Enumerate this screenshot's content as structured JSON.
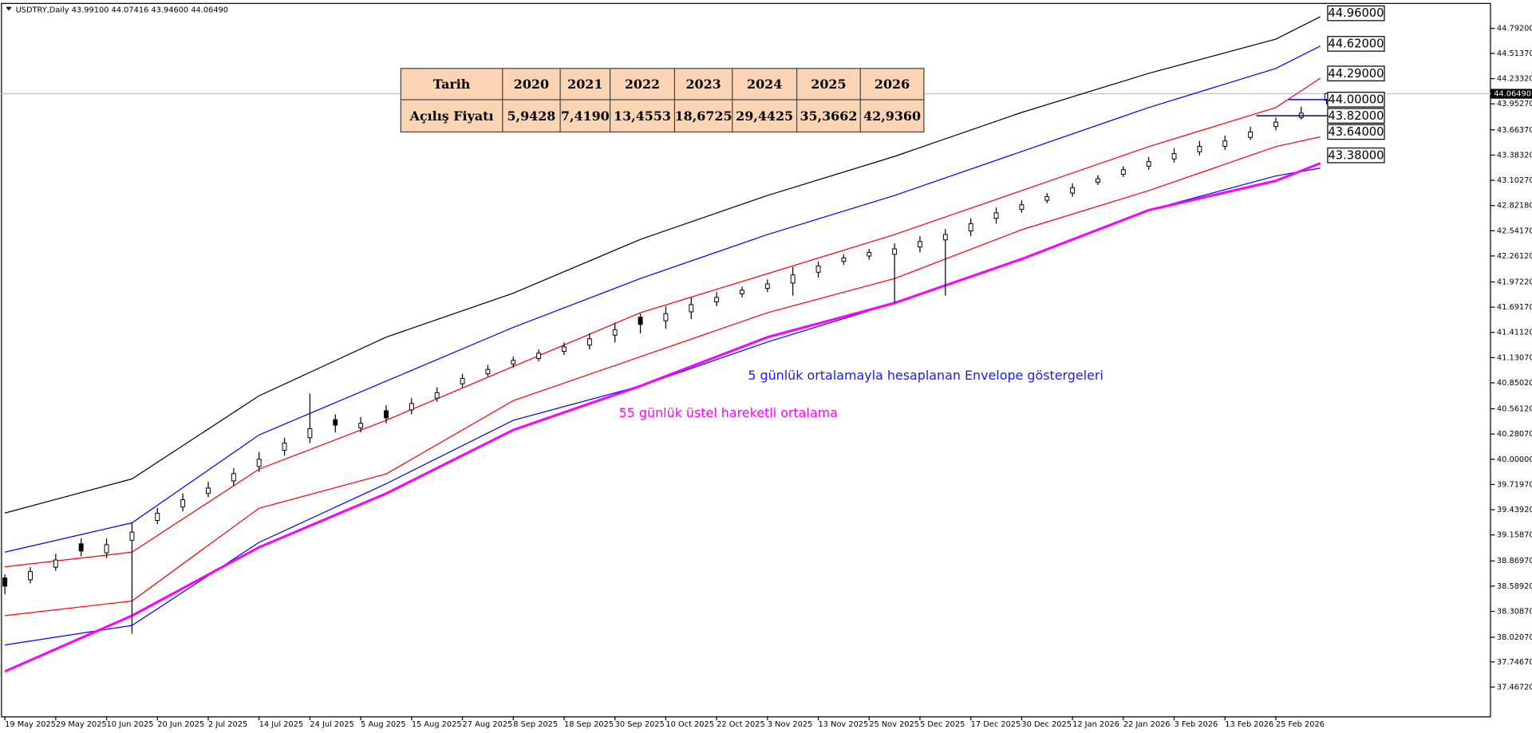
{
  "chart_data": {
    "type": "candlestick",
    "title": "USDTRY,Daily  43.99100 44.07416 43.94600 44.06490",
    "xlim": [
      -0.77,
      233.85
    ],
    "ylim": [
      37.141,
      45.053
    ],
    "xticks": [
      {
        "value": 0,
        "label": "19 May 2025"
      },
      {
        "value": 8,
        "label": "29 May 2025"
      },
      {
        "value": 16,
        "label": "10 Jun 2025"
      },
      {
        "value": 24,
        "label": "20 Jun 2025"
      },
      {
        "value": 32,
        "label": "2 Jul 2025"
      },
      {
        "value": 40,
        "label": "14 Jul 2025"
      },
      {
        "value": 48,
        "label": "24 Jul 2025"
      },
      {
        "value": 56,
        "label": "5 Aug 2025"
      },
      {
        "value": 64,
        "label": "15 Aug 2025"
      },
      {
        "value": 72,
        "label": "27 Aug 2025"
      },
      {
        "value": 80,
        "label": "8 Sep 2025"
      },
      {
        "value": 88,
        "label": "18 Sep 2025"
      },
      {
        "value": 96,
        "label": "30 Sep 2025"
      },
      {
        "value": 104,
        "label": "10 Oct 2025"
      },
      {
        "value": 112,
        "label": "22 Oct 2025"
      },
      {
        "value": 120,
        "label": "3 Nov 2025"
      },
      {
        "value": 128,
        "label": "13 Nov 2025"
      },
      {
        "value": 136,
        "label": "25 Nov 2025"
      },
      {
        "value": 144,
        "label": "5 Dec 2025"
      },
      {
        "value": 152,
        "label": "17 Dec 2025"
      },
      {
        "value": 160,
        "label": "30 Dec 2025"
      },
      {
        "value": 168,
        "label": "12 Jan 2026"
      },
      {
        "value": 176,
        "label": "22 Jan 2026"
      },
      {
        "value": 184,
        "label": "3 Feb 2026"
      },
      {
        "value": 192,
        "label": "13 Feb 2026"
      },
      {
        "value": 200,
        "label": "25 Feb 2026"
      }
    ],
    "yticks": [
      {
        "value": 44.792,
        "label": "44.79200"
      },
      {
        "value": 44.5137,
        "label": "44.51370"
      },
      {
        "value": 44.2332,
        "label": "44.23320"
      },
      {
        "value": 43.9527,
        "label": "43.95270"
      },
      {
        "value": 43.6637,
        "label": "43.66370"
      },
      {
        "value": 43.3832,
        "label": "43.38320"
      },
      {
        "value": 43.1027,
        "label": "43.10270"
      },
      {
        "value": 42.8218,
        "label": "42.82180"
      },
      {
        "value": 42.5417,
        "label": "42.54170"
      },
      {
        "value": 42.2612,
        "label": "42.26120"
      },
      {
        "value": 41.9722,
        "label": "41.97220"
      },
      {
        "value": 41.6917,
        "label": "41.69170"
      },
      {
        "value": 41.4112,
        "label": "41.41120"
      },
      {
        "value": 41.1307,
        "label": "41.13070"
      },
      {
        "value": 40.8502,
        "label": "40.85020"
      },
      {
        "value": 40.5612,
        "label": "40.56120"
      },
      {
        "value": 40.2807,
        "label": "40.28070"
      },
      {
        "value": 40.0,
        "label": "40.00000"
      },
      {
        "value": 39.7197,
        "label": "39.71970"
      },
      {
        "value": 39.4392,
        "label": "39.43920"
      },
      {
        "value": 39.1587,
        "label": "39.15870"
      },
      {
        "value": 38.8697,
        "label": "38.86970"
      },
      {
        "value": 38.5892,
        "label": "38.58920"
      },
      {
        "value": 38.3087,
        "label": "38.30870"
      },
      {
        "value": 38.0207,
        "label": "38.02070"
      },
      {
        "value": 37.7467,
        "label": "37.74670"
      },
      {
        "value": 37.4672,
        "label": "37.46720"
      }
    ],
    "candles": {
      "x": [
        0,
        4,
        8,
        12,
        16,
        20,
        24,
        28,
        32,
        36,
        40,
        44,
        48,
        52,
        56,
        60,
        64,
        68,
        72,
        76,
        80,
        84,
        88,
        92,
        96,
        100,
        104,
        108,
        112,
        116,
        120,
        124,
        128,
        132,
        136,
        140,
        144,
        148,
        152,
        156,
        160,
        164,
        168,
        172,
        176,
        180,
        184,
        188,
        192,
        196,
        200,
        204,
        208
      ],
      "open": [
        38.68,
        38.66,
        38.8,
        39.06,
        38.96,
        39.1,
        39.32,
        39.47,
        39.62,
        39.76,
        39.92,
        40.1,
        40.24,
        40.44,
        40.35,
        40.54,
        40.55,
        40.68,
        40.84,
        40.95,
        41.06,
        41.12,
        41.2,
        41.27,
        41.38,
        41.58,
        41.54,
        41.64,
        41.75,
        41.84,
        41.9,
        41.96,
        42.08,
        42.2,
        42.26,
        42.28,
        42.36,
        42.44,
        42.54,
        42.68,
        42.78,
        42.88,
        42.96,
        43.08,
        43.17,
        43.26,
        43.34,
        43.42,
        43.48,
        43.58,
        43.7,
        43.8,
        43.991
      ],
      "high": [
        38.72,
        38.8,
        38.95,
        39.12,
        39.12,
        39.3,
        39.46,
        39.62,
        39.75,
        39.9,
        40.08,
        40.24,
        40.73,
        40.5,
        40.47,
        40.6,
        40.68,
        40.8,
        40.95,
        41.05,
        41.14,
        41.22,
        41.3,
        41.4,
        41.52,
        41.62,
        41.7,
        41.8,
        41.86,
        41.92,
        42.0,
        42.14,
        42.2,
        42.28,
        42.34,
        42.4,
        42.48,
        42.56,
        42.68,
        42.8,
        42.88,
        42.96,
        43.07,
        43.16,
        43.26,
        43.36,
        43.46,
        43.54,
        43.6,
        43.7,
        43.8,
        43.92,
        44.07416
      ],
      "low": [
        38.5,
        38.62,
        38.76,
        38.92,
        38.9,
        38.06,
        39.28,
        39.42,
        39.58,
        39.7,
        39.86,
        40.04,
        40.18,
        40.3,
        40.3,
        40.4,
        40.5,
        40.64,
        40.8,
        40.92,
        41.02,
        41.09,
        41.16,
        41.22,
        41.3,
        41.4,
        41.45,
        41.56,
        41.7,
        41.8,
        41.86,
        41.82,
        42.02,
        42.16,
        42.22,
        41.74,
        42.3,
        41.82,
        42.48,
        42.62,
        42.74,
        42.85,
        42.92,
        43.05,
        43.14,
        43.22,
        43.3,
        43.38,
        43.44,
        43.55,
        43.66,
        43.78,
        43.946
      ],
      "close": [
        38.59,
        38.75,
        38.88,
        38.98,
        39.05,
        39.19,
        39.4,
        39.55,
        39.68,
        39.84,
        40.0,
        40.18,
        40.34,
        40.38,
        40.4,
        40.46,
        40.62,
        40.74,
        40.9,
        41.0,
        41.1,
        41.18,
        41.25,
        41.34,
        41.44,
        41.5,
        41.62,
        41.72,
        41.8,
        41.88,
        41.95,
        42.05,
        42.15,
        42.24,
        42.3,
        42.34,
        42.42,
        42.5,
        42.62,
        42.74,
        42.83,
        42.92,
        43.02,
        43.12,
        43.22,
        43.31,
        43.4,
        43.48,
        43.54,
        43.64,
        43.75,
        43.85,
        44.0649
      ]
    },
    "lines": {
      "x": [
        0,
        20,
        40,
        60,
        80,
        100,
        120,
        140,
        160,
        180,
        200,
        207
      ],
      "series": [
        {
          "color": "#000000",
          "width": 1,
          "values": [
            39.402,
            39.782,
            40.706,
            41.358,
            41.847,
            42.445,
            42.934,
            43.368,
            43.857,
            44.292,
            44.672,
            44.922
          ]
        },
        {
          "color": "#0000ff",
          "width": 1,
          "values": [
            38.967,
            39.293,
            40.271,
            40.869,
            41.467,
            42.01,
            42.499,
            42.934,
            43.423,
            43.912,
            44.346,
            44.596
          ]
        },
        {
          "color": "#ff0000",
          "width": 1,
          "values": [
            38.804,
            38.967,
            39.891,
            40.434,
            41.032,
            41.63,
            42.064,
            42.499,
            42.988,
            43.477,
            43.912,
            44.238
          ]
        },
        {
          "color": "#ff0000",
          "width": 1,
          "values": [
            38.261,
            38.424,
            39.456,
            39.837,
            40.652,
            41.141,
            41.63,
            42.01,
            42.553,
            42.988,
            43.477,
            43.586
          ]
        },
        {
          "color": "#0000ff",
          "width": 1,
          "values": [
            37.935,
            38.152,
            39.076,
            39.728,
            40.434,
            40.815,
            41.304,
            41.738,
            42.227,
            42.771,
            43.151,
            43.238
          ]
        },
        {
          "color": "#ff00ff",
          "width": 2.5,
          "values": [
            37.641,
            38.261,
            39.022,
            39.619,
            40.326,
            40.815,
            41.358,
            41.738,
            42.227,
            42.771,
            43.097,
            43.292
          ]
        }
      ]
    },
    "last_price": {
      "value": 44.0649,
      "label": "44.06490"
    },
    "levels": [
      {
        "value": 44.96,
        "label": "44.96000"
      },
      {
        "value": 44.62,
        "label": "44.62000"
      },
      {
        "value": 44.29,
        "label": "44.29000"
      },
      {
        "value": 44.0,
        "label": "44.00000",
        "line_color": "#0000ff"
      },
      {
        "value": 43.82,
        "label": "43.82000",
        "line_color": "#000080"
      },
      {
        "value": 43.64,
        "label": "43.64000"
      },
      {
        "value": 43.38,
        "label": "43.38000"
      }
    ],
    "annotations": [
      {
        "text": "5 günlük ortalamayla hesaplanan Envelope göstergeleri",
        "color": "#1a1aff"
      },
      {
        "text": "55 günlük üstel hareketli ortalama",
        "color": "#ff00ff"
      }
    ]
  },
  "table": {
    "header": [
      "Tarih",
      "2020",
      "2021",
      "2022",
      "2023",
      "2024",
      "2025",
      "2026"
    ],
    "rows": [
      [
        "Açılış Fiyatı",
        "5,9428",
        "7,4190",
        "13,4553",
        "18,6725",
        "29,4425",
        "35,3662",
        "42,9360"
      ]
    ]
  }
}
